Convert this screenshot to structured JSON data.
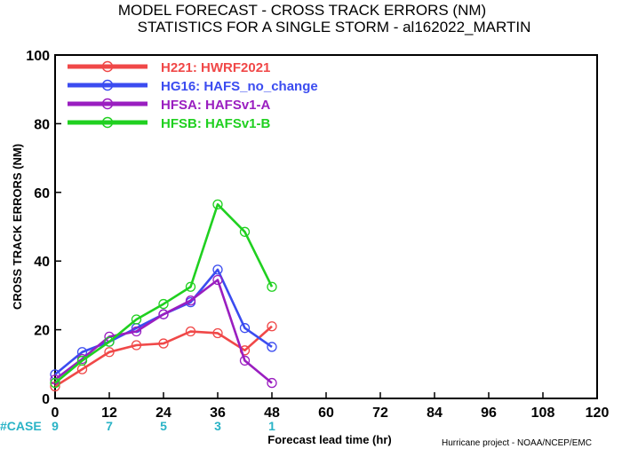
{
  "chart_data": {
    "type": "line",
    "title": "MODEL FORECAST - CROSS TRACK ERRORS (NM)",
    "subtitle": "STATISTICS FOR A SINGLE STORM - al162022_MARTIN",
    "xlabel": "Forecast lead time (hr)",
    "ylabel": "CROSS TRACK ERRORS (NM)",
    "xlim": [
      0,
      120
    ],
    "ylim": [
      0,
      100
    ],
    "xticks": [
      0,
      12,
      24,
      36,
      48,
      60,
      72,
      84,
      96,
      108,
      120
    ],
    "yticks": [
      0,
      20,
      40,
      60,
      80,
      100
    ],
    "grid": false,
    "legend_position": "top-left",
    "case_label": "#CASE",
    "case_counts": [
      {
        "x": 0,
        "label": "9"
      },
      {
        "x": 12,
        "label": "7"
      },
      {
        "x": 24,
        "label": "5"
      },
      {
        "x": 36,
        "label": "3"
      },
      {
        "x": 48,
        "label": "1"
      }
    ],
    "series": [
      {
        "name": "H221: HWRF2021",
        "color": "#f04848",
        "x": [
          0,
          6,
          12,
          18,
          24,
          30,
          36,
          42,
          48
        ],
        "values": [
          3.5,
          8.5,
          13.5,
          15.5,
          16,
          19.5,
          19,
          14,
          21
        ]
      },
      {
        "name": "HG16: HAFS_no_change",
        "color": "#3b4cf0",
        "x": [
          0,
          6,
          12,
          18,
          24,
          30,
          36,
          42,
          48
        ],
        "values": [
          7,
          13.5,
          16.5,
          20.5,
          24.5,
          28,
          37.5,
          20.5,
          15
        ]
      },
      {
        "name": "HFSA: HAFSv1-A",
        "color": "#9a1ec0",
        "x": [
          0,
          6,
          12,
          18,
          24,
          30,
          36,
          42,
          48
        ],
        "values": [
          5.5,
          11.5,
          18,
          19.5,
          24.5,
          28.5,
          34.5,
          11,
          4.5
        ]
      },
      {
        "name": "HFSB: HAFSv1-B",
        "color": "#20d020",
        "x": [
          0,
          6,
          12,
          18,
          24,
          30,
          36,
          42,
          48
        ],
        "values": [
          4.5,
          11,
          16.5,
          23,
          27.5,
          32.5,
          56.5,
          48.5,
          32.5
        ]
      }
    ]
  },
  "credit": "Hurricane project - NOAA/NCEP/EMC"
}
